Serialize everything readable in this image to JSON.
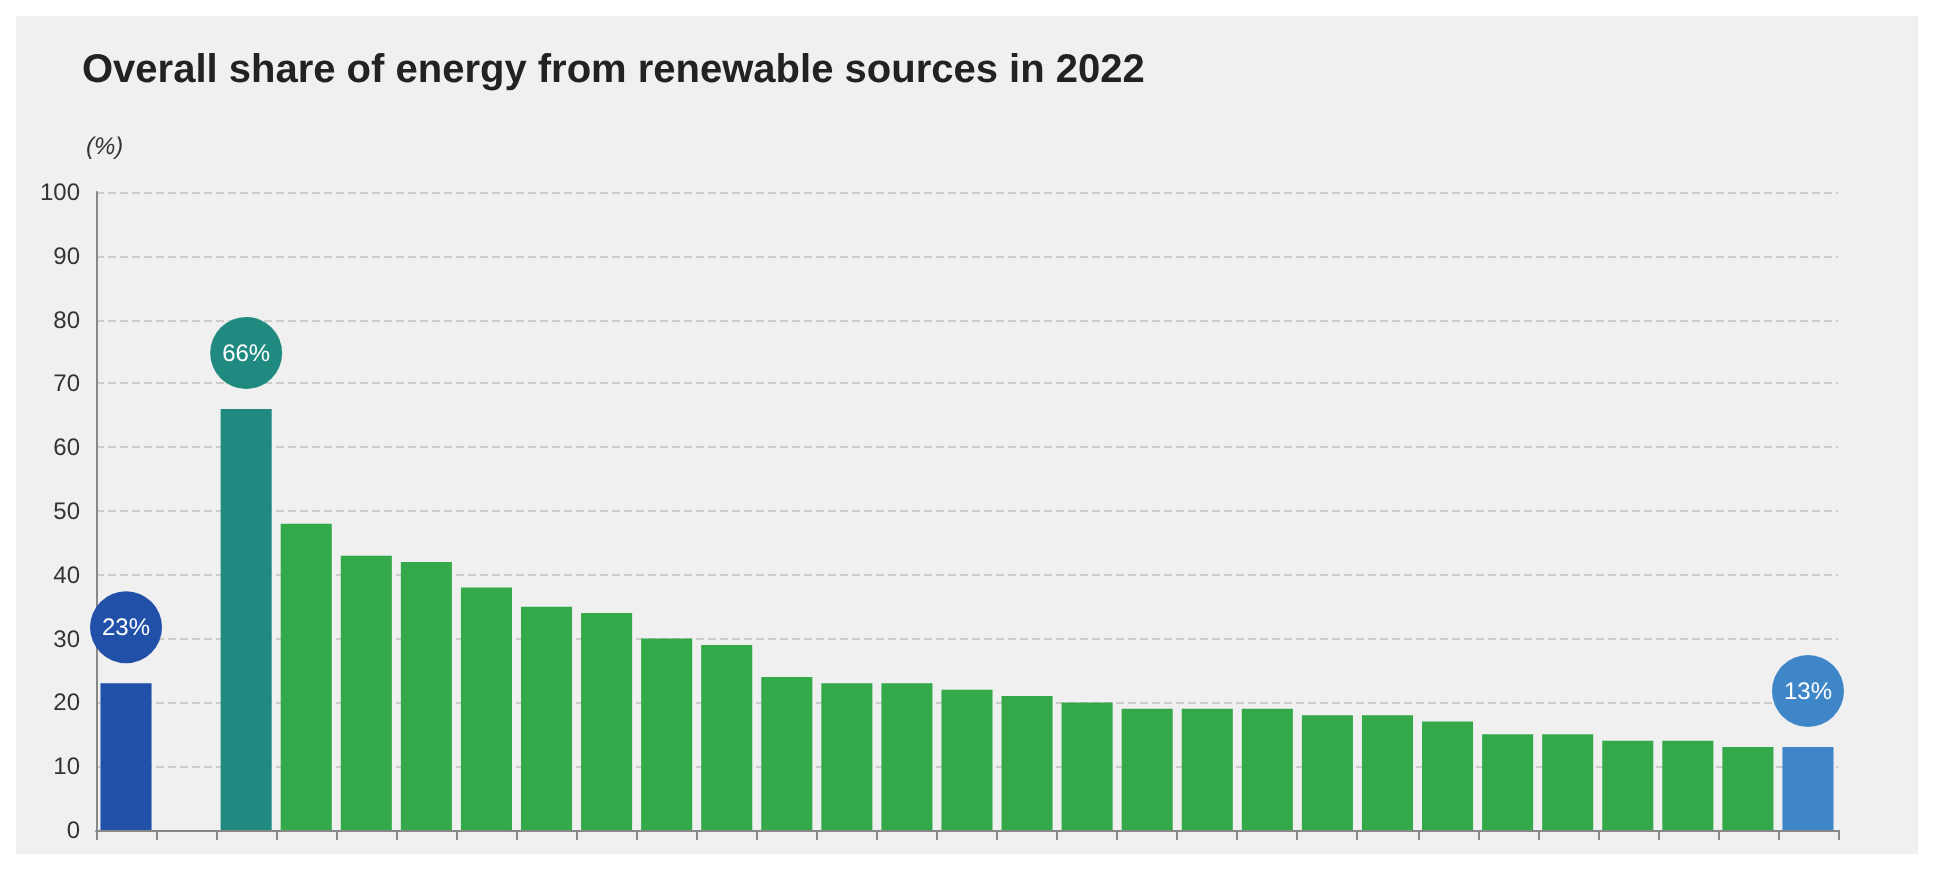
{
  "chart_data": {
    "type": "bar",
    "title": "Overall share of energy from renewable sources in 2022",
    "ylabel": "(%)",
    "categories": [
      null,
      null,
      null,
      null,
      null,
      null,
      null,
      null,
      null,
      null,
      null,
      null,
      null,
      null,
      null,
      null,
      null,
      null,
      null,
      null,
      null,
      null,
      null,
      null,
      null,
      null,
      null,
      null,
      null
    ],
    "values": [
      23,
      null,
      66,
      48,
      43,
      42,
      38,
      35,
      34,
      30,
      29,
      24,
      23,
      23,
      22,
      21,
      20,
      19,
      19,
      19,
      18,
      18,
      17,
      15,
      15,
      14,
      14,
      13,
      13
    ],
    "value_labels": [
      "23%",
      null,
      "66%",
      null,
      null,
      null,
      null,
      null,
      null,
      null,
      null,
      null,
      null,
      null,
      null,
      null,
      null,
      null,
      null,
      null,
      null,
      null,
      null,
      null,
      null,
      null,
      null,
      null,
      "13%"
    ],
    "colors": [
      "#2150a8",
      "#33a94a",
      "#218a80",
      "#33a94a",
      "#33a94a",
      "#33a94a",
      "#33a94a",
      "#33a94a",
      "#33a94a",
      "#33a94a",
      "#33a94a",
      "#33a94a",
      "#33a94a",
      "#33a94a",
      "#33a94a",
      "#33a94a",
      "#33a94a",
      "#33a94a",
      "#33a94a",
      "#33a94a",
      "#33a94a",
      "#33a94a",
      "#33a94a",
      "#33a94a",
      "#33a94a",
      "#33a94a",
      "#33a94a",
      "#33a94a",
      "#3f86c8"
    ],
    "ylim": [
      0,
      100
    ],
    "yticks": [
      0,
      10,
      20,
      30,
      40,
      50,
      60,
      70,
      80,
      90,
      100
    ],
    "grid": "y"
  }
}
